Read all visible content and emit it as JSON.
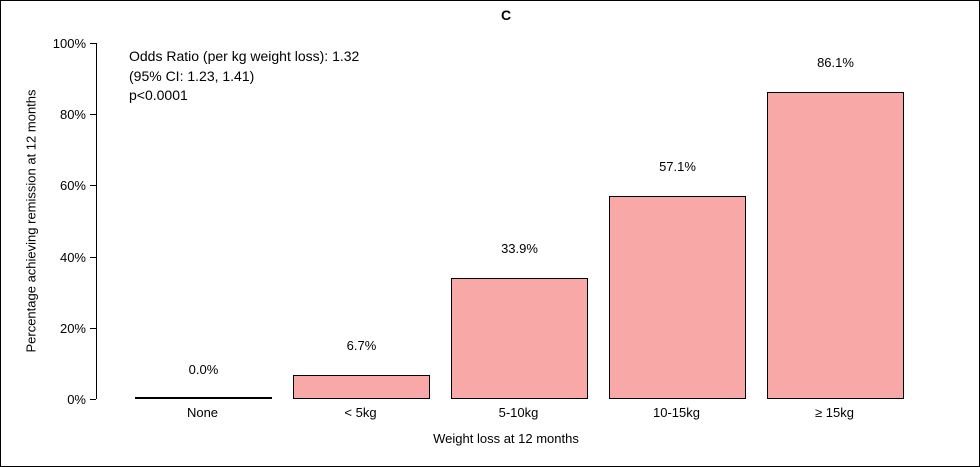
{
  "annotation": {
    "line1": "Odds Ratio (per kg weight loss): 1.32",
    "line2": "(95% CI: 1.23, 1.41)",
    "line3": "p<0.0001"
  },
  "chart_data": {
    "type": "bar",
    "title": "C",
    "categories": [
      "None",
      "< 5kg",
      "5-10kg",
      "10-15kg",
      "≥ 15kg"
    ],
    "values": [
      0.0,
      6.7,
      33.9,
      57.1,
      86.1
    ],
    "value_labels": [
      "0.0%",
      "6.7%",
      "33.9%",
      "57.1%",
      "86.1%"
    ],
    "xlabel": "Weight loss at 12 months",
    "ylabel": "Percentage achieving remission at 12 months",
    "ylim": [
      0,
      100
    ],
    "yticks": [
      0,
      20,
      40,
      60,
      80,
      100
    ],
    "ytick_labels": [
      "0%",
      "20%",
      "40%",
      "60%",
      "80%",
      "100%"
    ],
    "grid": false,
    "legend": "none",
    "bar_color": "#F9A8A8",
    "bar_border_color": "#000000"
  }
}
